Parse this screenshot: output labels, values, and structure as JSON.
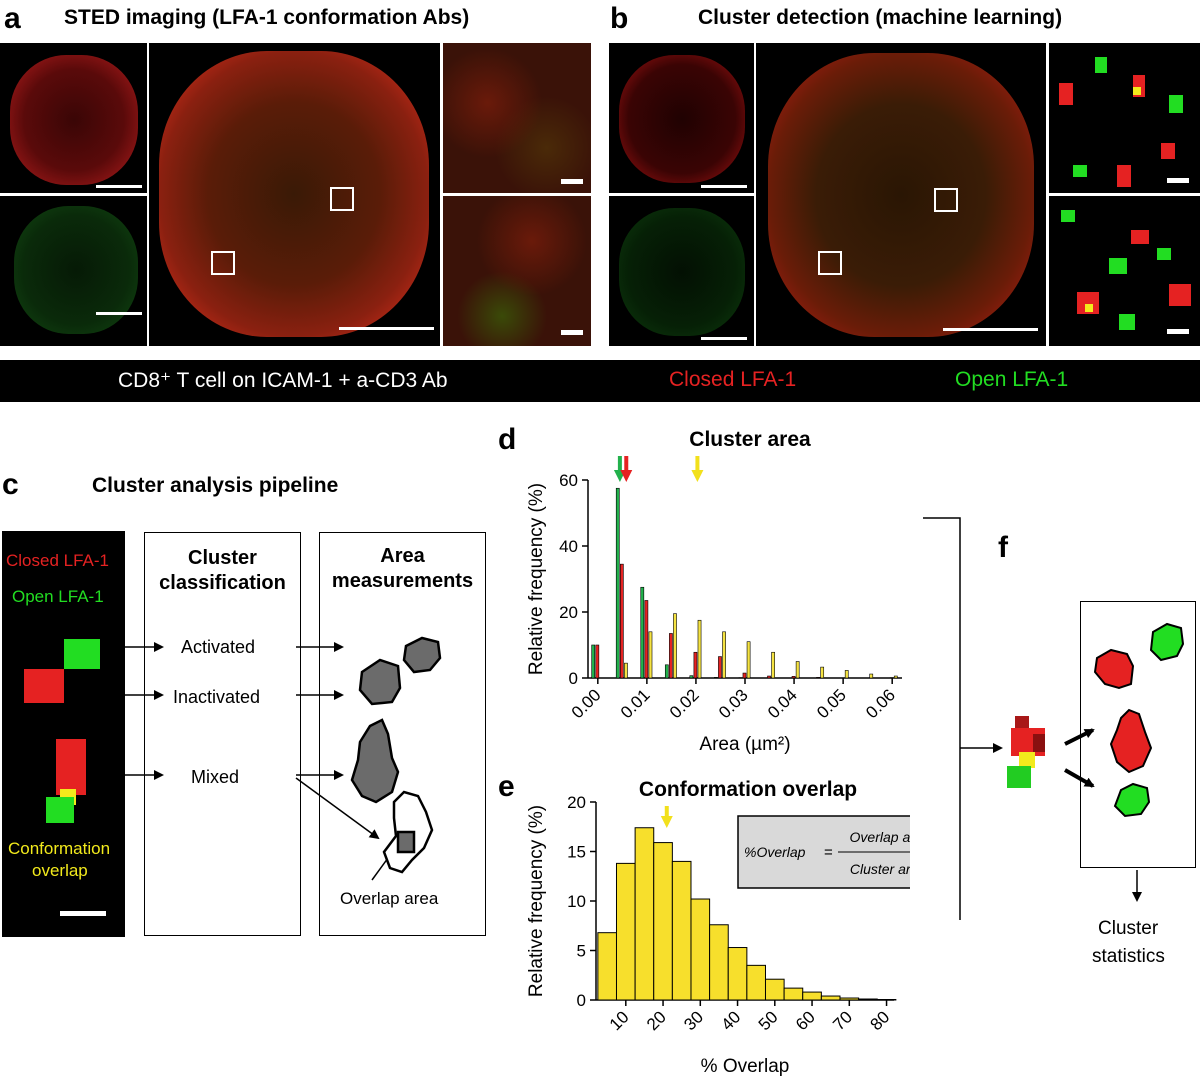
{
  "panel_a": {
    "label": "a",
    "title": "STED imaging (LFA-1 conformation Abs)"
  },
  "panel_b": {
    "label": "b",
    "title": "Cluster detection (machine learning)"
  },
  "banner": {
    "cell_text": "CD8⁺ T cell on ICAM-1 + a-CD3 Ab",
    "closed": "Closed LFA-1",
    "open": "Open LFA-1",
    "closed_color": "#e52222",
    "open_color": "#22dd22"
  },
  "panel_c": {
    "label": "c",
    "title": "Cluster analysis pipeline",
    "legend_closed": "Closed LFA-1",
    "legend_open": "Open LFA-1",
    "overlap_line1": "Conformation",
    "overlap_line2": "overlap",
    "overlap_color": "#f2ea1c",
    "class_header_line1": "Cluster",
    "class_header_line2": "classification",
    "class_items": [
      "Activated",
      "Inactivated",
      "Mixed"
    ],
    "area_header_line1": "Area",
    "area_header_line2": "measurements",
    "overlap_area_label": "Overlap area"
  },
  "panel_d": {
    "label": "d"
  },
  "panel_e": {
    "label": "e"
  },
  "panel_f": {
    "label": "f",
    "stats_line1": "Cluster",
    "stats_line2": "statistics"
  },
  "chart_data": [
    {
      "type": "bar",
      "title": "Cluster area",
      "xlabel": "Area (µm²)",
      "ylabel": "Relative frequency (%)",
      "ylim": [
        0,
        60
      ],
      "yticks": [
        0,
        20,
        40,
        60
      ],
      "xticks": [
        "0.00",
        "0.01",
        "0.02",
        "0.03",
        "0.04",
        "0.05",
        "0.06"
      ],
      "xlim": [
        -0.002,
        0.062
      ],
      "bin_width": 0.0025,
      "x": [
        0.0,
        0.0025,
        0.005,
        0.0075,
        0.01,
        0.0125,
        0.015,
        0.0175,
        0.02,
        0.0225,
        0.025,
        0.0275,
        0.03,
        0.0325,
        0.035,
        0.0375,
        0.04,
        0.0425,
        0.045,
        0.0475,
        0.05,
        0.0525,
        0.055,
        0.0575,
        0.06
      ],
      "series": [
        {
          "color": "#22b14c",
          "values": [
            10,
            0,
            57.5,
            0,
            27.5,
            0,
            4,
            0,
            0.7,
            0,
            0.2,
            0,
            0.1,
            0,
            0,
            0,
            0,
            0,
            0,
            0,
            0,
            0,
            0,
            0,
            0
          ]
        },
        {
          "color": "#e52222",
          "values": [
            10,
            0,
            34.5,
            0,
            23.5,
            0,
            13.5,
            0,
            7.8,
            0,
            6.5,
            0,
            1.5,
            0,
            0.6,
            0,
            0.5,
            0,
            0.2,
            0,
            0,
            0,
            0,
            0,
            0.1
          ]
        },
        {
          "color": "#f5e342",
          "values": [
            0,
            0,
            4.5,
            0,
            14,
            0,
            19.5,
            0,
            17.5,
            0,
            14,
            0,
            11,
            0,
            7.8,
            0,
            5,
            0,
            3.3,
            0,
            2.3,
            0,
            1.2,
            0,
            0.6
          ]
        }
      ],
      "arrows": [
        {
          "x": 0.0045,
          "color": "#22b14c"
        },
        {
          "x": 0.0058,
          "color": "#e52222"
        },
        {
          "x": 0.0203,
          "color": "#f2e01c"
        }
      ]
    },
    {
      "type": "bar",
      "title": "Conformation overlap",
      "xlabel": "% Overlap",
      "ylabel": "Relative frequency (%)",
      "ylim": [
        0,
        20
      ],
      "yticks": [
        0,
        5,
        10,
        15,
        20
      ],
      "xticks": [
        "10",
        "20",
        "30",
        "40",
        "50",
        "60",
        "70",
        "80"
      ],
      "xlim": [
        2,
        82
      ],
      "x": [
        5,
        10,
        15,
        20,
        25,
        30,
        35,
        40,
        45,
        50,
        55,
        60,
        65,
        70,
        75,
        80
      ],
      "bin_width": 5,
      "values": [
        6.8,
        13.8,
        17.4,
        15.9,
        14,
        10.2,
        7.6,
        5.3,
        3.5,
        2.1,
        1.2,
        0.8,
        0.4,
        0.2,
        0.1,
        0.05
      ],
      "bar_color": "#f7df2c",
      "arrow": {
        "x": 21,
        "color": "#f2e01c"
      },
      "formula": {
        "lhs": "%Overlap",
        "numerator": "Overlap area",
        "denominator": "Cluster area"
      }
    }
  ]
}
